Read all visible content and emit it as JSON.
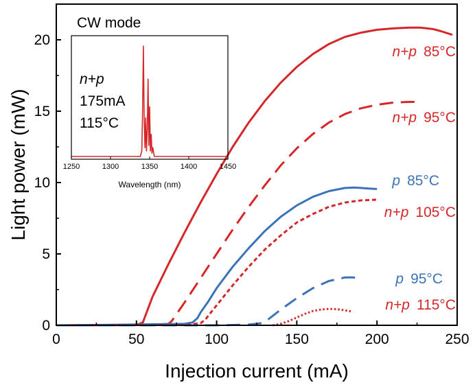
{
  "chart_data": [
    {
      "type": "line",
      "title": "",
      "xlabel": "Injection current (mA)",
      "ylabel": "Light power (mW)",
      "xlim": [
        0,
        250
      ],
      "ylim": [
        0,
        22.5
      ],
      "xticks": [
        0,
        50,
        100,
        150,
        200,
        250
      ],
      "yticks": [
        0,
        5,
        10,
        15,
        20
      ],
      "grid": false,
      "legend": "labels-next-to-curves",
      "annotation": "CW mode",
      "series": [
        {
          "name": "n+p 85°C",
          "name_italic": "n+p",
          "name_temp": "85°C",
          "color": "#d62728",
          "style": "solid",
          "x": [
            0,
            50,
            54,
            56,
            60,
            70,
            80,
            90,
            100,
            110,
            120,
            130,
            140,
            150,
            160,
            170,
            180,
            190,
            200,
            210,
            220,
            227,
            235,
            240,
            247
          ],
          "y": [
            0,
            0.02,
            0.2,
            0.8,
            2.0,
            4.3,
            6.5,
            8.6,
            10.6,
            12.5,
            14.2,
            15.7,
            17.0,
            18.1,
            19.0,
            19.7,
            20.2,
            20.5,
            20.7,
            20.8,
            20.85,
            20.85,
            20.75,
            20.6,
            20.35
          ]
        },
        {
          "name": "n+p 95°C",
          "name_italic": "n+p",
          "name_temp": "95°C",
          "color": "#d62728",
          "style": "dashed",
          "x": [
            0,
            60,
            70,
            72,
            80,
            90,
            100,
            110,
            120,
            130,
            140,
            150,
            160,
            170,
            180,
            190,
            200,
            210,
            220,
            225
          ],
          "y": [
            0,
            0.02,
            0.1,
            0.3,
            1.6,
            3.3,
            5.0,
            6.7,
            8.3,
            9.8,
            11.2,
            12.4,
            13.4,
            14.2,
            14.8,
            15.2,
            15.45,
            15.6,
            15.65,
            15.65
          ]
        },
        {
          "name": "p 85°C",
          "name_italic": "p",
          "name_temp": "85°C",
          "color": "#3b73b9",
          "style": "solid",
          "x": [
            0,
            30,
            60,
            80,
            85,
            88,
            90,
            95,
            100,
            110,
            120,
            130,
            140,
            150,
            160,
            170,
            180,
            186,
            190,
            195,
            200
          ],
          "y": [
            0,
            0.03,
            0.07,
            0.1,
            0.2,
            0.5,
            0.9,
            1.7,
            2.6,
            4.1,
            5.4,
            6.6,
            7.6,
            8.4,
            9.0,
            9.4,
            9.62,
            9.65,
            9.62,
            9.58,
            9.55
          ]
        },
        {
          "name": "n+p 105°C",
          "name_italic": "n+p",
          "name_temp": "105°C",
          "color": "#d62728",
          "style": "dotted",
          "x": [
            0,
            80,
            90,
            93,
            95,
            100,
            110,
            120,
            130,
            140,
            150,
            160,
            170,
            180,
            190,
            200
          ],
          "y": [
            0,
            0.02,
            0.15,
            0.4,
            0.7,
            1.4,
            2.8,
            4.1,
            5.3,
            6.3,
            7.2,
            7.8,
            8.3,
            8.6,
            8.75,
            8.8
          ]
        },
        {
          "name": "p 95°C",
          "name_italic": "p",
          "name_temp": "95°C",
          "color": "#3b73b9",
          "style": "dashed",
          "x": [
            0,
            100,
            120,
            128,
            132,
            140,
            150,
            160,
            170,
            180,
            185,
            190
          ],
          "y": [
            0,
            0.0,
            0.05,
            0.15,
            0.4,
            1.1,
            1.9,
            2.6,
            3.1,
            3.35,
            3.35,
            3.3
          ]
        },
        {
          "name": "n+p 115°C",
          "name_italic": "n+p",
          "name_temp": "115°C",
          "color": "#d62728",
          "style": "fine-dotted",
          "x": [
            135,
            140,
            145,
            150,
            155,
            160,
            165,
            170,
            175,
            180,
            185
          ],
          "y": [
            0.0,
            0.1,
            0.3,
            0.55,
            0.8,
            1.0,
            1.1,
            1.15,
            1.13,
            1.05,
            0.95
          ]
        }
      ]
    },
    {
      "type": "line",
      "title": "",
      "xlabel": "Wavelength (nm)",
      "ylabel": "",
      "xlim": [
        1250,
        1450
      ],
      "ylim": [
        0,
        1
      ],
      "xticks": [
        1250,
        1300,
        1350,
        1400,
        1450
      ],
      "grid": false,
      "annotation_lines": [
        "n+p",
        "175mA",
        "115°C"
      ],
      "series": [
        {
          "name": "",
          "color": "#d62728",
          "style": "solid",
          "x": [
            1250,
            1338,
            1340,
            1341,
            1342,
            1343,
            1344,
            1345,
            1346,
            1347,
            1348,
            1349,
            1350,
            1351,
            1352,
            1353,
            1354,
            1356,
            1360,
            1450
          ],
          "y": [
            0.0,
            0.0,
            0.05,
            0.4,
            1.0,
            0.35,
            0.08,
            0.35,
            0.05,
            0.25,
            0.7,
            0.1,
            0.45,
            0.05,
            0.2,
            0.03,
            0.08,
            0.0,
            0.0,
            0.0
          ]
        }
      ]
    }
  ]
}
